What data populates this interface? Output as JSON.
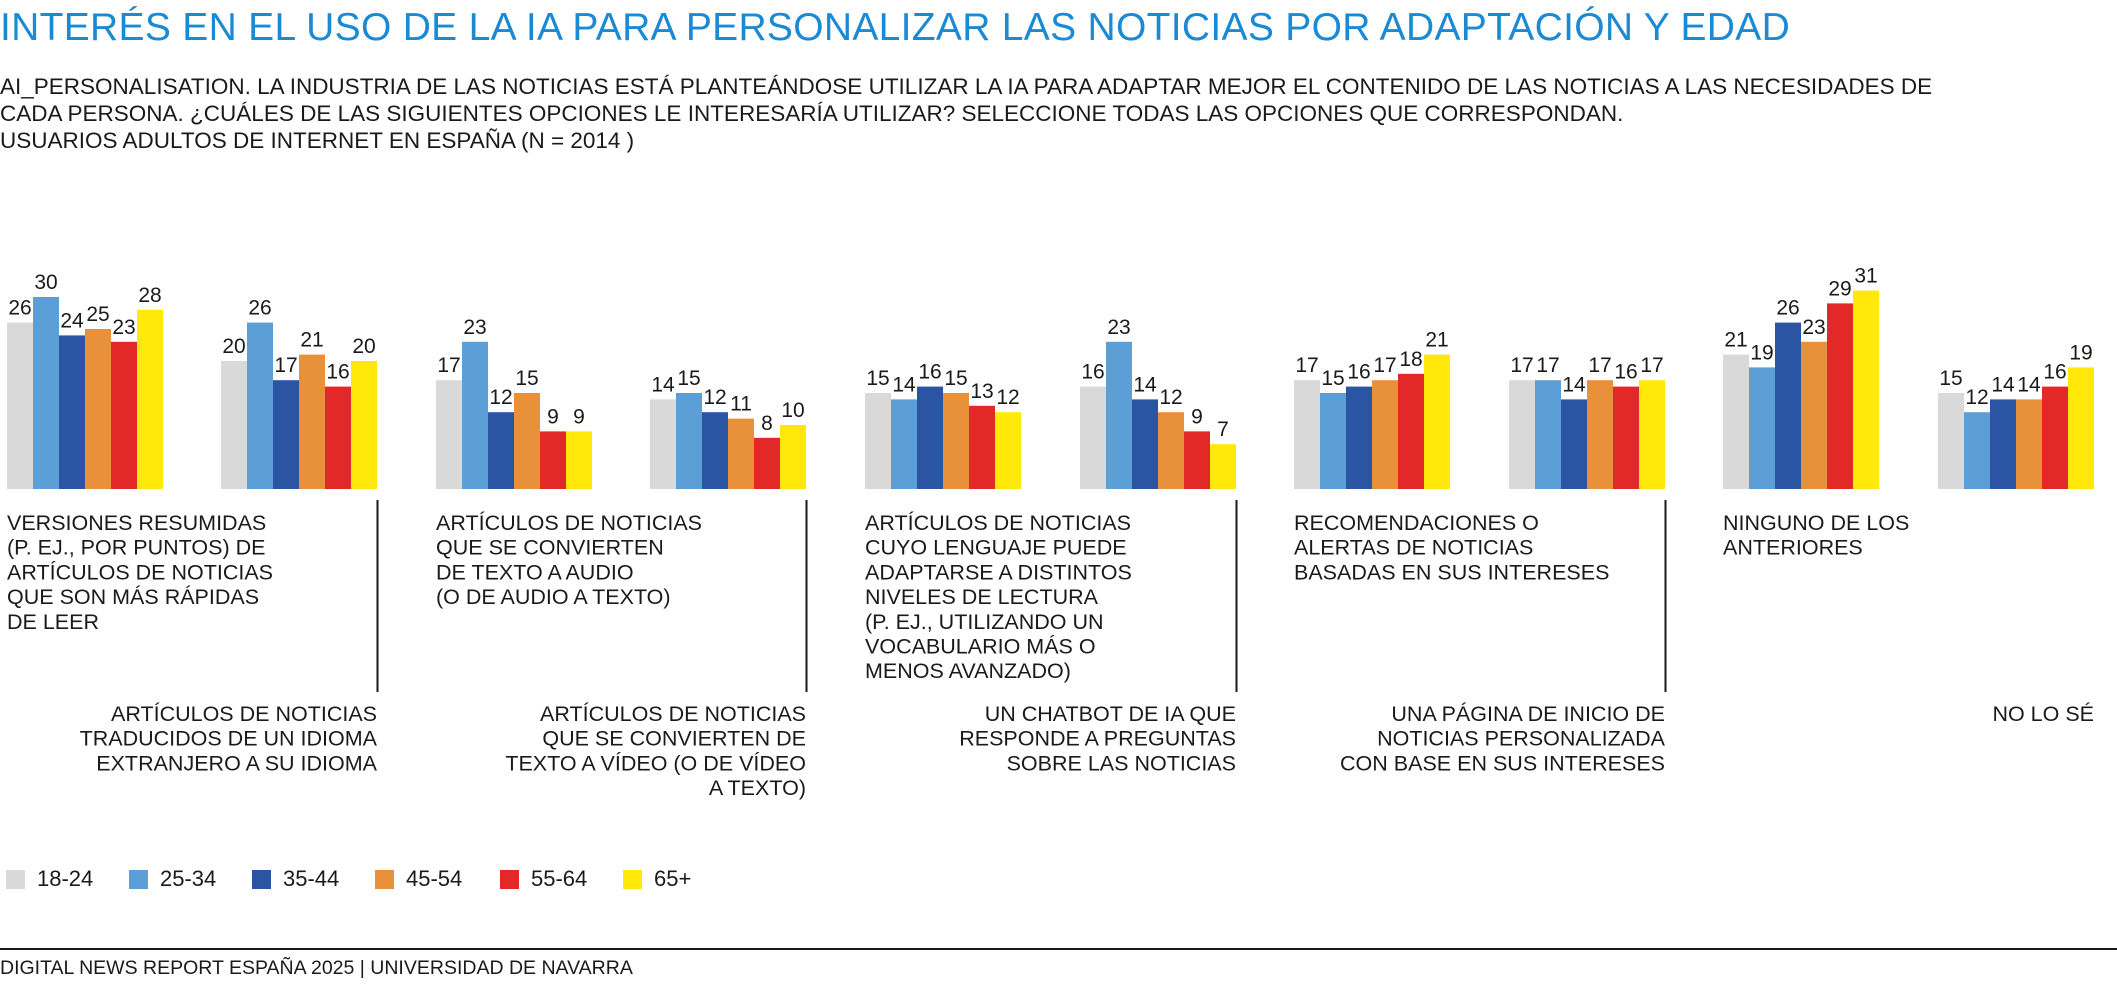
{
  "title": "INTERÉS EN EL USO DE LA IA PARA PERSONALIZAR LAS NOTICIAS POR ADAPTACIÓN Y EDAD",
  "subtitle_lines": [
    "AI_PERSONALISATION. LA INDUSTRIA DE LAS NOTICIAS ESTÁ PLANTEÁNDOSE UTILIZAR LA IA PARA ADAPTAR MEJOR EL CONTENIDO DE LAS NOTICIAS A LAS NECESIDADES DE",
    "CADA PERSONA. ¿CUÁLES DE LAS SIGUIENTES OPCIONES LE INTERESARÍA UTILIZAR? SELECCIONE TODAS LAS OPCIONES QUE CORRESPONDAN.",
    "USUARIOS ADULTOS DE INTERNET EN ESPAÑA (N = 2014 )"
  ],
  "footer": "DIGITAL NEWS REPORT ESPAÑA 2025 | UNIVERSIDAD DE NAVARRA",
  "chart_data": {
    "type": "bar",
    "ylim": [
      0,
      35
    ],
    "grid": false,
    "legend_placement": "bottom-left",
    "categories": [
      "VERSIONES RESUMIDAS (P. EJ., POR PUNTOS) DE ARTÍCULOS DE NOTICIAS QUE SON MÁS RÁPIDAS DE LEER",
      "ARTÍCULOS DE NOTICIAS TRADUCIDOS DE UN IDIOMA EXTRANJERO A SU IDIOMA",
      "ARTÍCULOS DE NOTICIAS QUE SE CONVIERTEN DE TEXTO A AUDIO (O DE AUDIO A TEXTO)",
      "ARTÍCULOS DE NOTICIAS QUE SE CONVIERTEN DE TEXTO A VÍDEO (O DE VÍDEO A TEXTO)",
      "ARTÍCULOS DE NOTICIAS CUYO LENGUAJE PUEDE ADAPTARSE A DISTINTOS NIVELES DE LECTURA (P. EJ., UTILIZANDO UN VOCABULARIO MÁS O MENOS AVANZADO)",
      "UN CHATBOT DE IA QUE RESPONDE A PREGUNTAS SOBRE LAS NOTICIAS",
      "RECOMENDACIONES O ALERTAS DE NOTICIAS BASADAS EN SUS INTERESES",
      "UNA PÁGINA DE INICIO DE NOTICIAS PERSONALIZADA CON BASE EN SUS INTERESES",
      "NINGUNO DE LOS ANTERIORES",
      "NO LO SÉ"
    ],
    "category_lines": [
      [
        "VERSIONES RESUMIDAS",
        "(P. EJ., POR PUNTOS) DE",
        "ARTÍCULOS DE NOTICIAS",
        "QUE SON MÁS RÁPIDAS",
        "DE LEER"
      ],
      [
        "ARTÍCULOS DE NOTICIAS",
        "TRADUCIDOS DE UN IDIOMA",
        "EXTRANJERO A SU IDIOMA"
      ],
      [
        "ARTÍCULOS DE NOTICIAS",
        "QUE SE CONVIERTEN",
        "DE TEXTO A AUDIO",
        "(O DE AUDIO A TEXTO)"
      ],
      [
        "ARTÍCULOS DE NOTICIAS",
        "QUE SE CONVIERTEN DE",
        "TEXTO A VÍDEO (O DE VÍDEO",
        "A TEXTO)"
      ],
      [
        "ARTÍCULOS DE NOTICIAS",
        "CUYO LENGUAJE PUEDE",
        "ADAPTARSE A DISTINTOS",
        "NIVELES DE LECTURA",
        "(P. EJ., UTILIZANDO UN",
        "VOCABULARIO MÁS O",
        "MENOS AVANZADO)"
      ],
      [
        "UN CHATBOT DE IA QUE",
        "RESPONDE A PREGUNTAS",
        "SOBRE LAS NOTICIAS"
      ],
      [
        "RECOMENDACIONES O",
        "ALERTAS DE NOTICIAS",
        "BASADAS EN SUS INTERESES"
      ],
      [
        "UNA PÁGINA DE INICIO DE",
        "NOTICIAS PERSONALIZADA",
        "CON BASE EN SUS INTERESES"
      ],
      [
        "NINGUNO DE LOS",
        "ANTERIORES"
      ],
      [
        "NO LO SÉ"
      ]
    ],
    "series": [
      {
        "name": "18-24",
        "color": "#d9d9d9",
        "values": [
          26,
          20,
          17,
          14,
          15,
          16,
          17,
          17,
          21,
          15
        ]
      },
      {
        "name": "25-34",
        "color": "#5b9fd6",
        "values": [
          30,
          26,
          23,
          15,
          14,
          23,
          15,
          17,
          19,
          12
        ]
      },
      {
        "name": "35-44",
        "color": "#2b55a3",
        "values": [
          24,
          17,
          12,
          12,
          16,
          14,
          16,
          14,
          26,
          14
        ]
      },
      {
        "name": "45-54",
        "color": "#e8903a",
        "values": [
          25,
          21,
          15,
          11,
          15,
          12,
          17,
          17,
          23,
          14
        ]
      },
      {
        "name": "55-64",
        "color": "#e32828",
        "values": [
          23,
          16,
          9,
          8,
          13,
          9,
          18,
          16,
          29,
          16
        ]
      },
      {
        "name": "65+",
        "color": "#ffe80a",
        "values": [
          28,
          20,
          9,
          10,
          12,
          7,
          21,
          17,
          31,
          19
        ]
      }
    ]
  }
}
